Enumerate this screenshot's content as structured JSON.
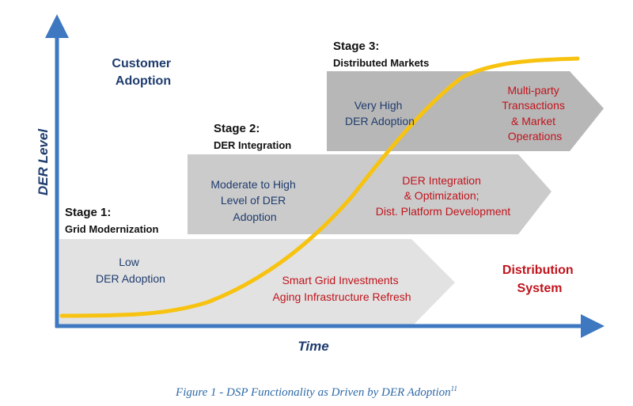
{
  "axes": {
    "y_label": "DER Level",
    "x_label": "Time"
  },
  "customer_adoption_label": [
    "Customer",
    "Adoption"
  ],
  "distribution_system_label": [
    "Distribution",
    "System"
  ],
  "stages": [
    {
      "heading": "Stage 1:",
      "subheading": "Grid Modernization",
      "adoption_text": [
        "Low",
        "DER Adoption"
      ],
      "system_text": [
        "Smart Grid Investments",
        "Aging Infrastructure Refresh"
      ]
    },
    {
      "heading": "Stage 2:",
      "subheading": "DER Integration",
      "adoption_text": [
        "Moderate to High",
        "Level of DER",
        "Adoption"
      ],
      "system_text": [
        "DER Integration",
        "& Optimization;",
        "Dist. Platform Development"
      ]
    },
    {
      "heading": "Stage 3:",
      "subheading": "Distributed Markets",
      "adoption_text": [
        "Very High",
        "DER Adoption"
      ],
      "system_text": [
        "Multi-party",
        "Transactions",
        "& Market",
        "Operations"
      ]
    }
  ],
  "caption": {
    "text": "Figure 1 - DSP Functionality as Driven by DER Adoption",
    "footnote": "11"
  },
  "colors": {
    "axis": "#3d78c0",
    "curve": "#f7c310",
    "stage1": "#e2e2e2",
    "stage2": "#cbcbcb",
    "stage3": "#b7b7b7",
    "blue_text": "#1f3c6e",
    "red_text": "#c0141c"
  }
}
